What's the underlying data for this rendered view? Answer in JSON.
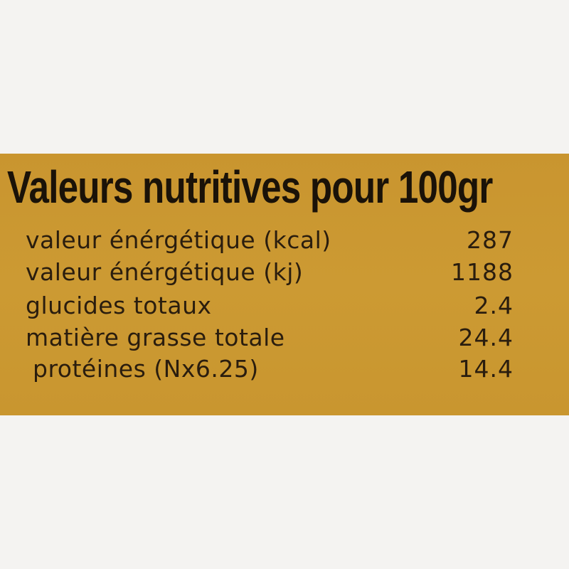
{
  "colors": {
    "background": "#c9962f",
    "text": "#2a1d0e"
  },
  "title": "Valeurs nutritives pour 100gr",
  "rows": [
    {
      "label": "valeur énérgétique (kcal)",
      "value": "287"
    },
    {
      "label": "valeur énérgétique (kj)",
      "value": "1188"
    },
    {
      "label": "glucides totaux",
      "value": "2.4"
    },
    {
      "label": "matière grasse totale",
      "value": "24.4"
    },
    {
      "label": "protéines (Nx6.25)",
      "value": "14.4"
    }
  ]
}
